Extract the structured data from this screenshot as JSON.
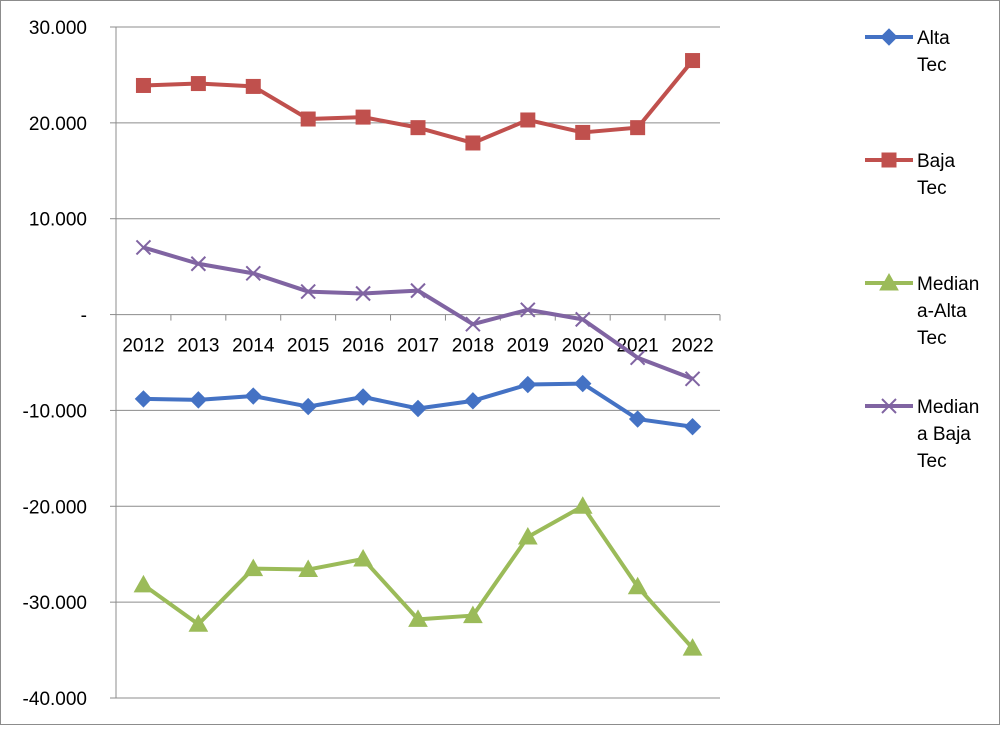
{
  "chart_data": {
    "type": "line",
    "title": "",
    "xlabel": "",
    "ylabel": "",
    "ylim": [
      -40000,
      30000
    ],
    "ytick_values": [
      30000,
      20000,
      10000,
      0,
      -10000,
      -20000,
      -30000,
      -40000
    ],
    "ytick_labels": [
      "30.000",
      "20.000",
      "10.000",
      "-",
      "-10.000",
      "-20.000",
      "-30.000",
      "-40.000"
    ],
    "categories": [
      "2012",
      "2013",
      "2014",
      "2015",
      "2016",
      "2017",
      "2018",
      "2019",
      "2020",
      "2021",
      "2022"
    ],
    "grid": "horizontal",
    "legend_position": "right",
    "series": [
      {
        "name": "Alta Tec",
        "legend_lines": [
          "Alta",
          "Tec"
        ],
        "color": "#4472C4",
        "marker": "diamond",
        "values": [
          -8800,
          -8900,
          -8500,
          -9600,
          -8600,
          -9800,
          -9000,
          -7300,
          -7200,
          -10900,
          -11700
        ]
      },
      {
        "name": "Baja Tec",
        "legend_lines": [
          "Baja",
          "Tec"
        ],
        "color": "#C0504D",
        "marker": "square",
        "values": [
          23900,
          24100,
          23800,
          20400,
          20600,
          19500,
          17900,
          20300,
          19000,
          19500,
          26500
        ]
      },
      {
        "name": "Mediana-Alta Tec",
        "legend_lines": [
          "Median",
          "a-Alta",
          "Tec"
        ],
        "color": "#9BBB59",
        "marker": "triangle",
        "values": [
          -28200,
          -32300,
          -26500,
          -26600,
          -25500,
          -31800,
          -31400,
          -23200,
          -20000,
          -28400,
          -34800
        ]
      },
      {
        "name": "Mediana Baja Tec",
        "legend_lines": [
          "Median",
          "a Baja",
          "Tec"
        ],
        "color": "#8064A2",
        "marker": "x",
        "values": [
          7000,
          5300,
          4300,
          2400,
          2200,
          2500,
          -1000,
          500,
          -500,
          -4500,
          -6700
        ]
      }
    ]
  }
}
